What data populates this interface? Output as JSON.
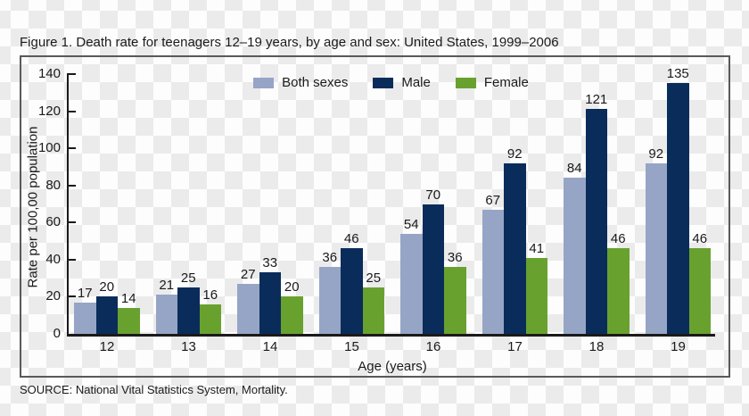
{
  "figure": {
    "title": "Figure 1. Death rate for teenagers 12–19 years, by age and sex: United States, 1999–2006",
    "source": "SOURCE: National Vital Statistics System, Mortality."
  },
  "chart_data": {
    "type": "bar",
    "title": "Figure 1. Death rate for teenagers 12–19 years, by age and sex: United States, 1999–2006",
    "categories": [
      "12",
      "13",
      "14",
      "15",
      "16",
      "17",
      "18",
      "19"
    ],
    "series": [
      {
        "name": "Both sexes",
        "color": "#96a5c6",
        "values": [
          17,
          21,
          27,
          36,
          54,
          67,
          84,
          92
        ]
      },
      {
        "name": "Male",
        "color": "#0a2c5a",
        "values": [
          20,
          25,
          33,
          46,
          70,
          92,
          121,
          135
        ]
      },
      {
        "name": "Female",
        "color": "#69a12f",
        "values": [
          14,
          16,
          20,
          25,
          36,
          41,
          46,
          46
        ]
      }
    ],
    "xlabel": "Age (years)",
    "ylabel": "Rate per 100,00 population",
    "ylim": [
      0,
      140
    ],
    "yticks": [
      0,
      20,
      40,
      60,
      80,
      100,
      120,
      140
    ],
    "bar_labels": true,
    "legend_position": "top-center",
    "grid": false
  },
  "colors": {
    "checker_light": "#ffffff",
    "checker_dark": "#ebebeb",
    "frame_border": "#595959",
    "axis": "#1a1a1a",
    "text": "#1a1a1a"
  }
}
